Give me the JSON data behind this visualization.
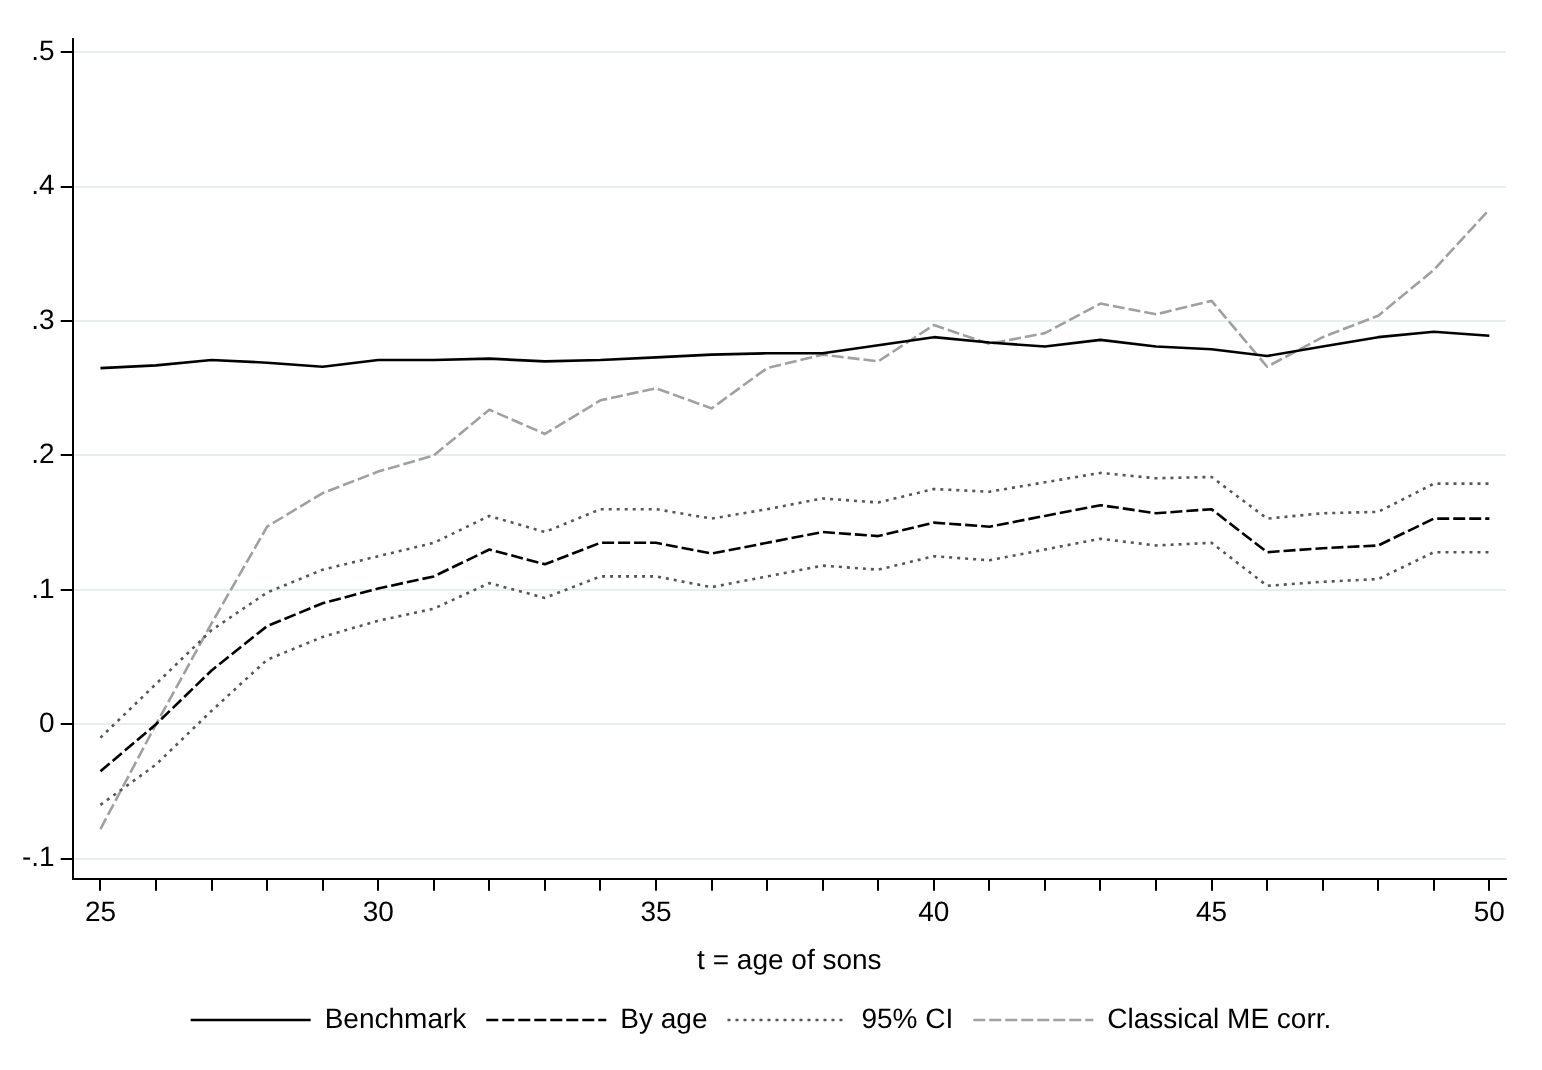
{
  "chart_data": {
    "type": "line",
    "xlabel": "t = age of sons",
    "x": [
      25,
      26,
      27,
      28,
      29,
      30,
      31,
      32,
      33,
      34,
      35,
      36,
      37,
      38,
      39,
      40,
      41,
      42,
      43,
      44,
      45,
      46,
      47,
      48,
      49,
      50
    ],
    "series": [
      {
        "name": "Benchmark",
        "color": "#000000",
        "line_style": "solid",
        "values": [
          0.265,
          0.267,
          0.271,
          0.269,
          0.266,
          0.271,
          0.271,
          0.272,
          0.27,
          0.271,
          0.273,
          0.275,
          0.276,
          0.276,
          0.282,
          0.288,
          0.284,
          0.281,
          0.286,
          0.281,
          0.279,
          0.274,
          0.281,
          0.288,
          0.292,
          0.289
        ]
      },
      {
        "name": "By age",
        "color": "#000000",
        "line_style": "dashed",
        "values": [
          -0.035,
          0.0,
          0.04,
          0.073,
          0.09,
          0.101,
          0.11,
          0.13,
          0.119,
          0.135,
          0.135,
          0.127,
          0.135,
          0.143,
          0.14,
          0.15,
          0.147,
          0.155,
          0.163,
          0.157,
          0.16,
          0.128,
          0.131,
          0.133,
          0.153,
          0.153
        ]
      },
      {
        "name": "95% CI",
        "color": "#555555",
        "line_style": "dotted",
        "values": [
          -0.01,
          0.03,
          0.07,
          0.098,
          0.115,
          0.125,
          0.135,
          0.155,
          0.143,
          0.16,
          0.16,
          0.153,
          0.16,
          0.168,
          0.165,
          0.175,
          0.173,
          0.18,
          0.187,
          0.183,
          0.184,
          0.153,
          0.157,
          0.158,
          0.179,
          0.179
        ]
      },
      {
        "color": "#555555",
        "line_style": "dotted",
        "values": [
          -0.06,
          -0.03,
          0.01,
          0.048,
          0.065,
          0.077,
          0.086,
          0.105,
          0.094,
          0.11,
          0.11,
          0.102,
          0.11,
          0.118,
          0.115,
          0.125,
          0.122,
          0.13,
          0.138,
          0.133,
          0.135,
          0.103,
          0.106,
          0.108,
          0.128,
          0.128
        ]
      },
      {
        "name": "Classical ME corr.",
        "color": "#a0a0a0",
        "line_style": "dashed",
        "values": [
          -0.078,
          0.0,
          0.075,
          0.147,
          0.172,
          0.188,
          0.2,
          0.234,
          0.216,
          0.241,
          0.25,
          0.235,
          0.265,
          0.275,
          0.27,
          0.297,
          0.283,
          0.291,
          0.313,
          0.305,
          0.315,
          0.266,
          0.288,
          0.304,
          0.338,
          0.383
        ]
      }
    ],
    "xlim": [
      24.5,
      50.3
    ],
    "xticks": [
      25,
      {
        "value": 26,
        "label": null
      },
      {
        "value": 27,
        "label": null
      },
      {
        "value": 28,
        "label": null
      },
      {
        "value": 29,
        "label": null
      },
      30,
      {
        "value": 31,
        "label": null
      },
      {
        "value": 32,
        "label": null
      },
      {
        "value": 33,
        "label": null
      },
      {
        "value": 34,
        "label": null
      },
      35,
      {
        "value": 36,
        "label": null
      },
      {
        "value": 37,
        "label": null
      },
      {
        "value": 38,
        "label": null
      },
      {
        "value": 39,
        "label": null
      },
      40,
      {
        "value": 41,
        "label": null
      },
      {
        "value": 42,
        "label": null
      },
      {
        "value": 43,
        "label": null
      },
      {
        "value": 44,
        "label": null
      },
      45,
      {
        "value": 46,
        "label": null
      },
      {
        "value": 47,
        "label": null
      },
      {
        "value": 48,
        "label": null
      },
      {
        "value": 49,
        "label": null
      },
      50
    ],
    "ylim": [
      -0.115,
      0.51
    ],
    "yticks": [
      {
        "value": -0.1,
        "label": "-.1"
      },
      {
        "value": 0,
        "label": "0"
      },
      {
        "value": 0.1,
        "label": ".1"
      },
      {
        "value": 0.2,
        "label": ".2"
      },
      {
        "value": 0.3,
        "label": ".3"
      },
      {
        "value": 0.4,
        "label": ".4"
      },
      {
        "value": 0.5,
        "label": ".5"
      }
    ],
    "grid": "y",
    "legend": "bottom",
    "marker": "none"
  }
}
